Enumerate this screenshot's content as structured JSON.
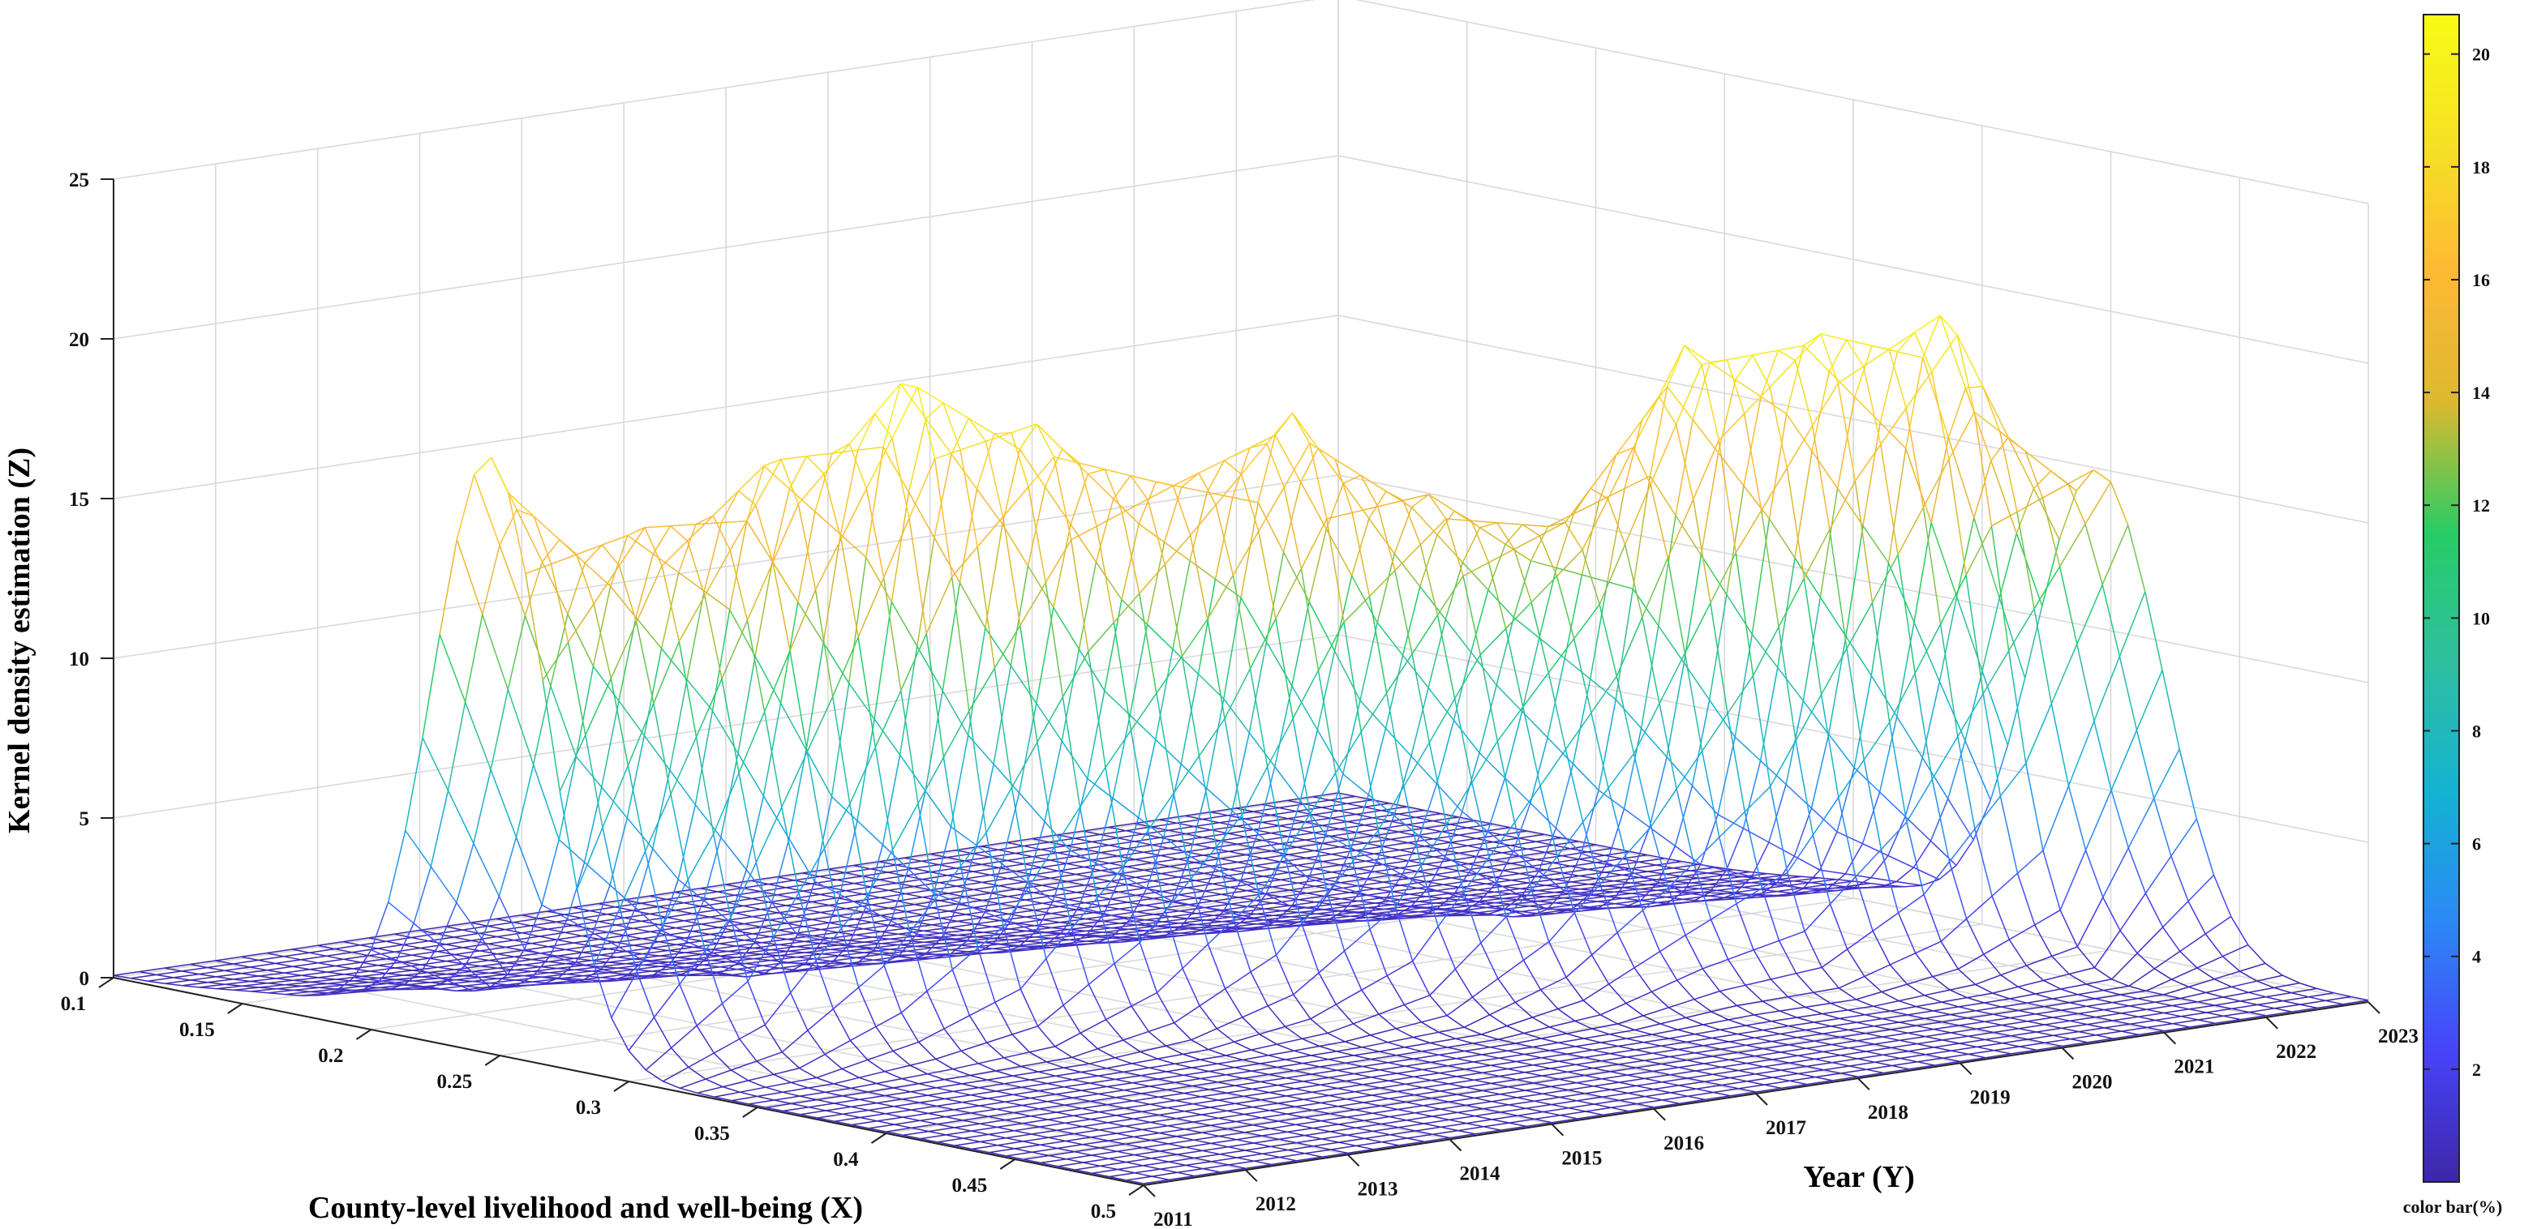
{
  "chart_data": {
    "type": "surface",
    "title": "",
    "xlabel": "County-level livelihood and well-being (X)",
    "ylabel": "Year (Y)",
    "zlabel": "Kernel density estimation (Z)",
    "colorbar_label": "color bar(%)",
    "x_ticks": [
      "0.1",
      "0.15",
      "0.2",
      "0.25",
      "0.3",
      "0.35",
      "0.4",
      "0.45",
      "0.5"
    ],
    "x_tick_values": [
      0.1,
      0.15,
      0.2,
      0.25,
      0.3,
      0.35,
      0.4,
      0.45,
      0.5
    ],
    "y_ticks": [
      "2011",
      "2012",
      "2013",
      "2014",
      "2015",
      "2016",
      "2017",
      "2018",
      "2019",
      "2020",
      "2021",
      "2022",
      "2023"
    ],
    "z_ticks": [
      "0",
      "5",
      "10",
      "15",
      "20",
      "25"
    ],
    "z_tick_values": [
      0,
      5,
      10,
      15,
      20,
      25
    ],
    "colorbar_ticks": [
      "2",
      "4",
      "6",
      "8",
      "10",
      "12",
      "14",
      "16",
      "18",
      "20"
    ],
    "colorbar_tick_values": [
      2,
      4,
      6,
      8,
      10,
      12,
      14,
      16,
      18,
      20
    ],
    "xlim": [
      0.1,
      0.5
    ],
    "ylim": [
      2011,
      2023
    ],
    "zlim": [
      0,
      25
    ],
    "clim": [
      0,
      20.7
    ],
    "series": [
      {
        "name": "2011",
        "peaks": [
          {
            "x": 0.246,
            "z": 18.6,
            "w": 0.022
          },
          {
            "x": 0.175,
            "z": 0.5,
            "w": 0.03
          }
        ]
      },
      {
        "name": "2012",
        "peaks": [
          {
            "x": 0.265,
            "z": 16.3,
            "w": 0.022
          },
          {
            "x": 0.19,
            "z": 0.5,
            "w": 0.03
          }
        ]
      },
      {
        "name": "2013",
        "peaks": [
          {
            "x": 0.278,
            "z": 18.2,
            "w": 0.022
          },
          {
            "x": 0.205,
            "z": 0.5,
            "w": 0.03
          }
        ]
      },
      {
        "name": "2014",
        "peaks": [
          {
            "x": 0.29,
            "z": 20.4,
            "w": 0.02
          },
          {
            "x": 0.215,
            "z": 0.5,
            "w": 0.03
          }
        ]
      },
      {
        "name": "2015",
        "peaks": [
          {
            "x": 0.3,
            "z": 18.6,
            "w": 0.021
          },
          {
            "x": 0.225,
            "z": 0.5,
            "w": 0.03
          }
        ]
      },
      {
        "name": "2016",
        "peaks": [
          {
            "x": 0.31,
            "z": 16.6,
            "w": 0.022
          },
          {
            "x": 0.235,
            "z": 0.5,
            "w": 0.03
          }
        ]
      },
      {
        "name": "2017",
        "peaks": [
          {
            "x": 0.32,
            "z": 18.3,
            "w": 0.022
          },
          {
            "x": 0.25,
            "z": 0.5,
            "w": 0.03
          }
        ]
      },
      {
        "name": "2018",
        "peaks": [
          {
            "x": 0.333,
            "z": 15.5,
            "w": 0.024
          },
          {
            "x": 0.26,
            "z": 0.5,
            "w": 0.03
          }
        ]
      },
      {
        "name": "2019",
        "peaks": [
          {
            "x": 0.345,
            "z": 14.4,
            "w": 0.025
          },
          {
            "x": 0.27,
            "z": 0.5,
            "w": 0.03
          }
        ]
      },
      {
        "name": "2020",
        "peaks": [
          {
            "x": 0.355,
            "z": 19.6,
            "w": 0.021
          },
          {
            "x": 0.28,
            "z": 0.5,
            "w": 0.03
          }
        ]
      },
      {
        "name": "2021",
        "peaks": [
          {
            "x": 0.365,
            "z": 19.7,
            "w": 0.021
          },
          {
            "x": 0.29,
            "z": 0.5,
            "w": 0.03
          }
        ]
      },
      {
        "name": "2022",
        "peaks": [
          {
            "x": 0.375,
            "z": 19.9,
            "w": 0.021
          },
          {
            "x": 0.3,
            "z": 0.5,
            "w": 0.03
          }
        ]
      },
      {
        "name": "2023",
        "peaks": [
          {
            "x": 0.395,
            "z": 14.9,
            "w": 0.025
          },
          {
            "x": 0.31,
            "z": 0.5,
            "w": 0.03
          }
        ]
      }
    ],
    "colormap": [
      "#3e26a8",
      "#4743f8",
      "#2c88f6",
      "#13b3d2",
      "#2fbea0",
      "#26cd66",
      "#dbb92f",
      "#feb934",
      "#f5e125",
      "#f9fb15"
    ]
  }
}
